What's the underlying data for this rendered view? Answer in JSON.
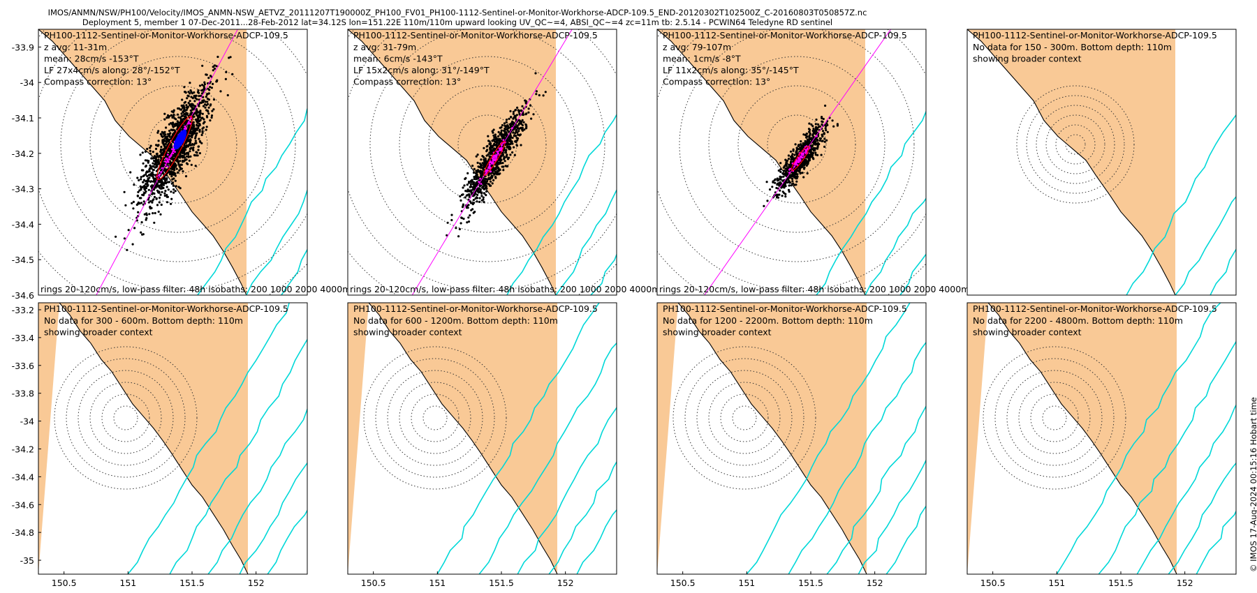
{
  "header": {
    "line1": "IMOS/ANMN/NSW/PH100/Velocity/IMOS_ANMN-NSW_AETVZ_20111207T190000Z_PH100_FV01_PH100-1112-Sentinel-or-Monitor-Workhorse-ADCP-109.5_END-20120302T102500Z_C-20160803T050857Z.nc",
    "line2": "Deployment 5, member 1 07-Dec-2011...28-Feb-2012 lat=34.12S lon=151.22E 110m/110m upward looking UV_QC~=4, ABSI_QC~=4 zc=11m tb: 2.5.14 - PCWIN64 Teledyne RD sentinel"
  },
  "stamp": "© IMOS 17-Aug-2024 00:15:16 Hobart time",
  "colors": {
    "land": "#f9c996",
    "sea": "#ffffff",
    "isobath": "#00d8d8",
    "coast": "#000000",
    "scatter": "#000000",
    "lowpass": "#ff00ff",
    "mean": "#0000ff",
    "ellipse": "#ff0000"
  },
  "chart_data": [
    {
      "type": "scatter",
      "title": "PH100-1112-Sentinel-or-Monitor-Workhorse-ADCP-109.5",
      "lines": [
        "z avg: 11-31m",
        "mean: 28cm/s -153°T",
        "LF 27x4cm/s along: 28°/-152°T",
        "Compass correction: 13°"
      ],
      "footer": "rings 20-120cm/s, low-pass filter: 48h isobaths: 200 1000 2000 4000m",
      "ylim": [
        -34.6,
        -33.85
      ],
      "yticks": [
        -33.9,
        -34,
        -34.1,
        -34.2,
        -34.3,
        -34.4,
        -34.5,
        -34.6
      ],
      "ytick_labels": [
        "-33.9",
        "-34",
        "-34.1",
        "-34.2",
        "-34.3",
        "-34.4",
        "-34.5",
        "-34.6"
      ],
      "rings_cm_s": [
        20,
        40,
        60,
        80,
        100,
        120
      ],
      "principal_axis_deg_true": 28,
      "lf_major_cm_s": 27,
      "lf_minor_cm_s": 4,
      "mean_speed_cm_s": 28,
      "mean_dir_deg_true": -153
    },
    {
      "type": "scatter",
      "title": "PH100-1112-Sentinel-or-Monitor-Workhorse-ADCP-109.5",
      "lines": [
        "z avg: 31-79m",
        "mean: 6cm/s -143°T",
        "LF 15x2cm/s along: 31°/-149°T",
        "Compass correction: 13°"
      ],
      "footer": "rings 20-120cm/s, low-pass filter: 48h isobaths: 200 1000 2000 4000m",
      "rings_cm_s": [
        20,
        40,
        60,
        80,
        100,
        120
      ],
      "principal_axis_deg_true": 31,
      "lf_major_cm_s": 15,
      "lf_minor_cm_s": 2,
      "mean_speed_cm_s": 6,
      "mean_dir_deg_true": -143
    },
    {
      "type": "scatter",
      "title": "PH100-1112-Sentinel-or-Monitor-Workhorse-ADCP-109.5",
      "lines": [
        "z avg: 79-107m",
        "mean: 1cm/s -8°T",
        "LF 11x2cm/s along: 35°/-145°T",
        "Compass correction: 13°"
      ],
      "footer": "rings 20-120cm/s, low-pass filter: 48h isobaths: 200 1000 2000 4000m",
      "rings_cm_s": [
        20,
        40,
        60,
        80,
        100,
        120
      ],
      "principal_axis_deg_true": 35,
      "lf_major_cm_s": 11,
      "lf_minor_cm_s": 2,
      "mean_speed_cm_s": 1,
      "mean_dir_deg_true": -8
    },
    {
      "type": "scatter",
      "title": "PH100-1112-Sentinel-or-Monitor-Workhorse-ADCP-109.5",
      "lines": [
        "No data for 150 - 300m. Bottom depth: 110m",
        "showing broader context"
      ],
      "footer": ""
    },
    {
      "type": "scatter",
      "title": "PH100-1112-Sentinel-or-Monitor-Workhorse-ADCP-109.5",
      "lines": [
        "No data for 300 - 600m. Bottom depth: 110m",
        "showing broader context"
      ],
      "footer": "",
      "ylim": [
        -35.1,
        -33.15
      ],
      "yticks": [
        -33.2,
        -33.4,
        -33.6,
        -33.8,
        -34,
        -34.2,
        -34.4,
        -34.6,
        -34.8,
        -35
      ],
      "ytick_labels": [
        "-33.2",
        "-33.4",
        "-33.6",
        "-33.8",
        "-34",
        "-34.2",
        "-34.4",
        "-34.6",
        "-34.8",
        "-35"
      ],
      "xlim": [
        150.3,
        152.4
      ],
      "xticks": [
        150.5,
        151,
        151.5,
        152
      ],
      "xtick_labels": [
        "150.5",
        "151",
        "151.5",
        "152"
      ]
    },
    {
      "type": "scatter",
      "title": "PH100-1112-Sentinel-or-Monitor-Workhorse-ADCP-109.5",
      "lines": [
        "No data for 600 - 1200m. Bottom depth: 110m",
        "showing broader context"
      ],
      "footer": "",
      "xlim": [
        150.3,
        152.4
      ],
      "xticks": [
        150.5,
        151,
        151.5,
        152
      ],
      "xtick_labels": [
        "150.5",
        "151",
        "151.5",
        "152"
      ]
    },
    {
      "type": "scatter",
      "title": "PH100-1112-Sentinel-or-Monitor-Workhorse-ADCP-109.5",
      "lines": [
        "No data for 1200 - 2200m. Bottom depth: 110m",
        "showing broader context"
      ],
      "footer": "",
      "xlim": [
        150.3,
        152.4
      ],
      "xticks": [
        150.5,
        151,
        151.5,
        152
      ],
      "xtick_labels": [
        "150.5",
        "151",
        "151.5",
        "152"
      ]
    },
    {
      "type": "scatter",
      "title": "PH100-1112-Sentinel-or-Monitor-Workhorse-ADCP-109.5",
      "lines": [
        "No data for 2200 - 4800m. Bottom depth: 110m",
        "showing broader context"
      ],
      "footer": "",
      "xlim": [
        150.3,
        152.4
      ],
      "xticks": [
        150.5,
        151,
        151.5,
        152
      ],
      "xtick_labels": [
        "150.5",
        "151",
        "151.5",
        "152"
      ]
    }
  ]
}
